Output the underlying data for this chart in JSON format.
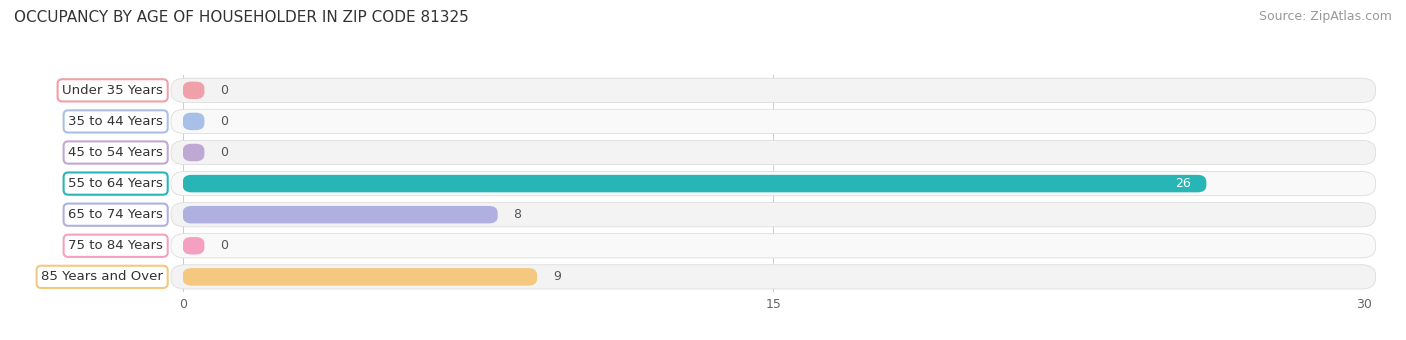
{
  "title": "OCCUPANCY BY AGE OF HOUSEHOLDER IN ZIP CODE 81325",
  "source": "Source: ZipAtlas.com",
  "categories": [
    "Under 35 Years",
    "35 to 44 Years",
    "45 to 54 Years",
    "55 to 64 Years",
    "65 to 74 Years",
    "75 to 84 Years",
    "85 Years and Over"
  ],
  "values": [
    0,
    0,
    0,
    26,
    8,
    0,
    9
  ],
  "bar_colors": [
    "#f0a0a8",
    "#a8c0e8",
    "#c0a8d4",
    "#28b5b5",
    "#b0b0e0",
    "#f5a0c0",
    "#f5c880"
  ],
  "xlim": [
    0,
    30
  ],
  "xticks": [
    0,
    15,
    30
  ],
  "title_fontsize": 11,
  "source_fontsize": 9,
  "bar_label_fontsize": 9,
  "category_fontsize": 9.5,
  "fig_bg_color": "#ffffff",
  "row_colors": [
    "#f4f4f4",
    "#f9f9f9",
    "#f4f4f4",
    "#f4f4f4",
    "#f9f9f9",
    "#f4f4f4",
    "#f9f9f9"
  ],
  "min_stub": 0.55
}
